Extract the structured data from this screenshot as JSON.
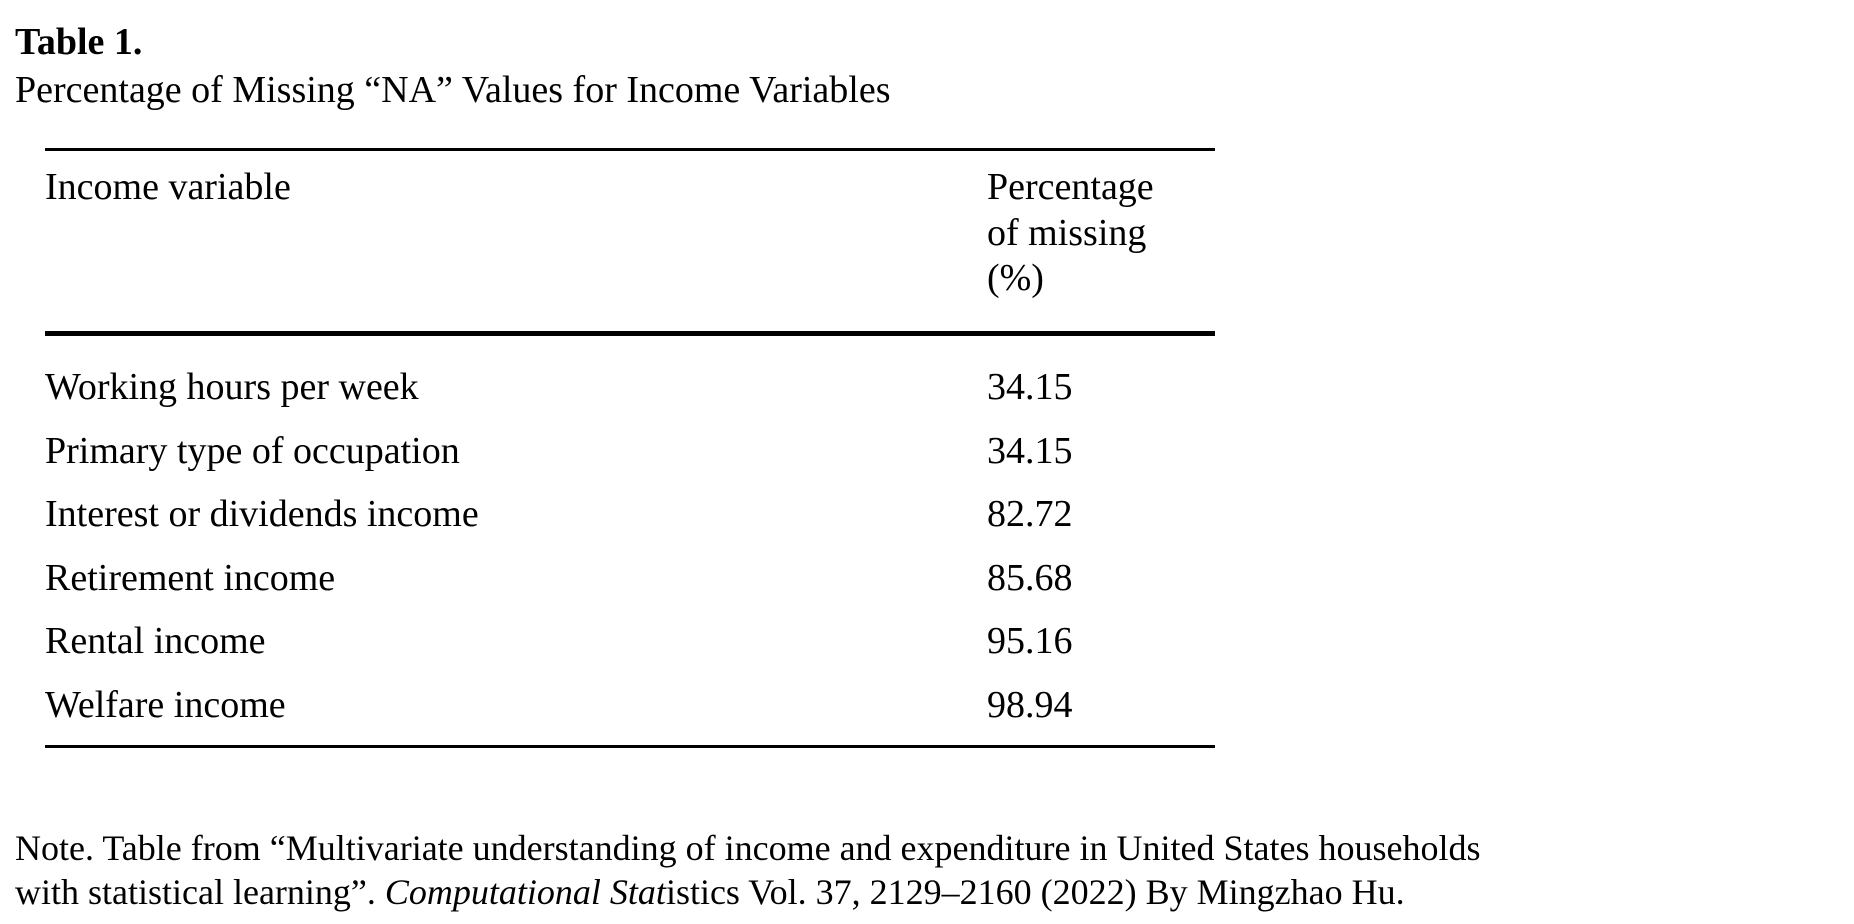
{
  "table": {
    "label": "Table 1.",
    "title": "Percentage of Missing “NA” Values for Income Variables",
    "headers": {
      "variable": "Income variable",
      "percent": "Percentage of missing (%)"
    },
    "rows": [
      {
        "variable": "Working hours per week",
        "percent": "34.15"
      },
      {
        "variable": "Primary type of occupation",
        "percent": "34.15"
      },
      {
        "variable": "Interest or dividends income",
        "percent": "82.72"
      },
      {
        "variable": "Retirement income",
        "percent": "85.68"
      },
      {
        "variable": "Rental income",
        "percent": "95.16"
      },
      {
        "variable": "Welfare income",
        "percent": "98.94"
      }
    ]
  },
  "note": {
    "line1": "Note. Table from “Multivariate understanding of income and expenditure in United States households",
    "line2_prefix": "with statistical learning”. ",
    "line2_italic": "Computational Stat",
    "line2_suffix": "istics Vol. 37, 2129–2160 (2022) By Mingzhao Hu."
  }
}
